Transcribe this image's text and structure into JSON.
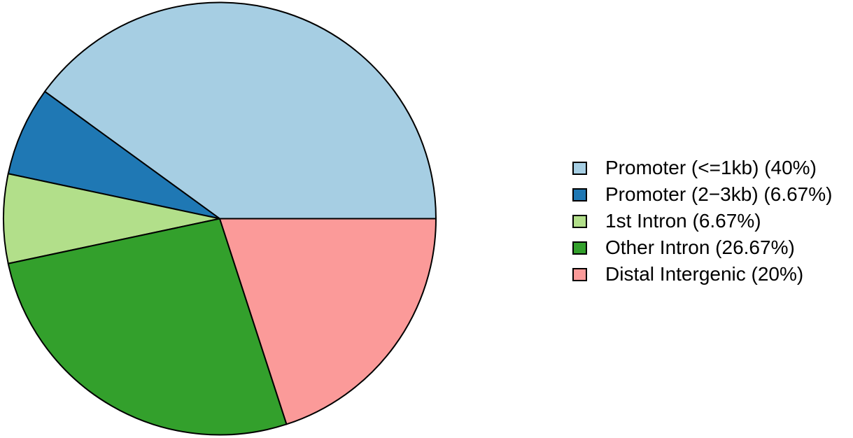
{
  "chart_data": {
    "type": "pie",
    "title": "",
    "start_angle_deg": 0,
    "direction": "counterclockwise",
    "stroke_color": "#000000",
    "stroke_width": 2,
    "background": "#FFFFFF",
    "legend_position": "right",
    "slices": [
      {
        "label": "Promoter (<=1kb)",
        "percent": 40,
        "legend_label": "Promoter (<=1kb) (40%)",
        "color": "#A6CEE3"
      },
      {
        "label": "Promoter (2−3kb)",
        "percent": 6.67,
        "legend_label": "Promoter (2−3kb) (6.67%)",
        "color": "#1F78B4"
      },
      {
        "label": "1st Intron",
        "percent": 6.67,
        "legend_label": "1st Intron (6.67%)",
        "color": "#B2DF8A"
      },
      {
        "label": "Other Intron",
        "percent": 26.67,
        "legend_label": "Other Intron (26.67%)",
        "color": "#33A02C"
      },
      {
        "label": "Distal Intergenic",
        "percent": 20,
        "legend_label": "Distal Intergenic (20%)",
        "color": "#FB9A99"
      }
    ]
  }
}
